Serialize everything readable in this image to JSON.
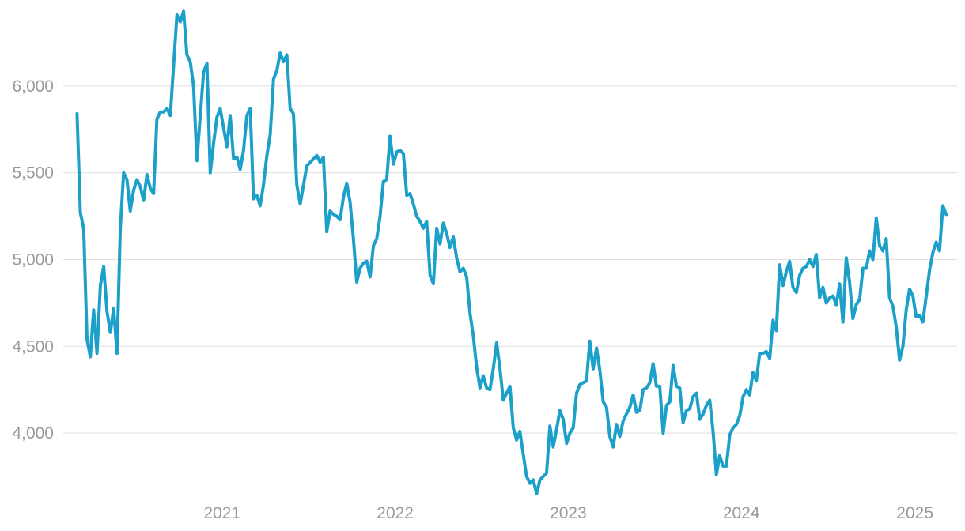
{
  "chart_data": {
    "type": "line",
    "title": "",
    "xlabel": "",
    "ylabel": "",
    "x_start": "2020-03-01",
    "x_end": "2025-03-08",
    "x_step": "weekly",
    "xlim": [
      "2020-02-01",
      "2025-03-31"
    ],
    "ylim": [
      3650,
      6450
    ],
    "y_ticks": [
      {
        "value": 4000,
        "label": "4,000"
      },
      {
        "value": 4500,
        "label": "4,500"
      },
      {
        "value": 5000,
        "label": "5,000"
      },
      {
        "value": 5500,
        "label": "5,500"
      },
      {
        "value": 6000,
        "label": "6,000"
      }
    ],
    "x_ticks": [
      {
        "value": "2021-01-01",
        "label": "2021"
      },
      {
        "value": "2022-01-01",
        "label": "2022"
      },
      {
        "value": "2023-01-01",
        "label": "2023"
      },
      {
        "value": "2024-01-01",
        "label": "2024"
      },
      {
        "value": "2025-01-01",
        "label": "2025"
      }
    ],
    "grid": true,
    "legend": "none",
    "colors": {
      "line": "#1ca0c9",
      "grid": "#dedede",
      "tick_text": "#9a9a9a"
    },
    "series": [
      {
        "values": [
          5840,
          5270,
          5180,
          4540,
          4440,
          4710,
          4460,
          4850,
          4960,
          4700,
          4580,
          4720,
          4460,
          5180,
          5500,
          5460,
          5280,
          5400,
          5460,
          5420,
          5340,
          5490,
          5410,
          5380,
          5810,
          5850,
          5850,
          5870,
          5830,
          6120,
          6410,
          6370,
          6430,
          6180,
          6140,
          6000,
          5570,
          5830,
          6080,
          6130,
          5500,
          5670,
          5820,
          5870,
          5760,
          5650,
          5830,
          5580,
          5590,
          5520,
          5630,
          5830,
          5870,
          5350,
          5370,
          5310,
          5430,
          5600,
          5720,
          6040,
          6090,
          6190,
          6140,
          6180,
          5870,
          5840,
          5430,
          5320,
          5430,
          5540,
          5560,
          5580,
          5600,
          5560,
          5590,
          5160,
          5280,
          5260,
          5250,
          5230,
          5360,
          5440,
          5330,
          5120,
          4870,
          4950,
          4980,
          4990,
          4900,
          5080,
          5120,
          5250,
          5450,
          5460,
          5710,
          5550,
          5620,
          5630,
          5610,
          5370,
          5380,
          5320,
          5250,
          5220,
          5180,
          5220,
          4910,
          4860,
          5180,
          5090,
          5210,
          5150,
          5070,
          5130,
          5010,
          4930,
          4950,
          4900,
          4690,
          4560,
          4380,
          4260,
          4330,
          4260,
          4250,
          4370,
          4520,
          4370,
          4190,
          4230,
          4270,
          4030,
          3960,
          4010,
          3880,
          3750,
          3710,
          3730,
          3650,
          3730,
          3750,
          3770,
          4040,
          3920,
          4020,
          4130,
          4080,
          3940,
          4000,
          4030,
          4230,
          4280,
          4290,
          4300,
          4530,
          4370,
          4490,
          4360,
          4180,
          4150,
          3980,
          3920,
          4050,
          3980,
          4070,
          4110,
          4150,
          4220,
          4120,
          4130,
          4250,
          4260,
          4290,
          4400,
          4270,
          4270,
          4000,
          4160,
          4180,
          4390,
          4270,
          4260,
          4060,
          4130,
          4140,
          4210,
          4230,
          4080,
          4110,
          4160,
          4190,
          4010,
          3760,
          3870,
          3810,
          3810,
          3990,
          4030,
          4050,
          4100,
          4210,
          4250,
          4220,
          4350,
          4300,
          4460,
          4460,
          4470,
          4430,
          4650,
          4590,
          4970,
          4850,
          4930,
          4990,
          4840,
          4810,
          4910,
          4950,
          4960,
          5000,
          4960,
          5030,
          4780,
          4840,
          4750,
          4780,
          4790,
          4740,
          4860,
          4640,
          5010,
          4870,
          4660,
          4740,
          4770,
          4950,
          4950,
          5050,
          5000,
          5240,
          5080,
          5050,
          5120,
          4780,
          4730,
          4610,
          4420,
          4500,
          4710,
          4830,
          4790,
          4670,
          4680,
          4640,
          4790,
          4940,
          5040,
          5100,
          5050,
          5310,
          5260
        ]
      }
    ]
  }
}
